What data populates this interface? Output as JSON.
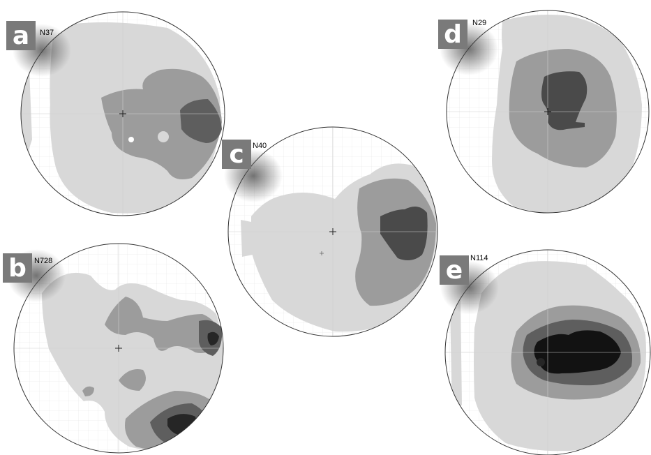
{
  "colors": {
    "background": "#ffffff",
    "level1": "#d6d6d6",
    "level2": "#9a9a9a",
    "level3": "#5c5c5c",
    "level4": "#262626",
    "level5": "#0f0f0f",
    "outline": "#333333"
  },
  "panels": [
    {
      "letter": "a",
      "n_label": "N37"
    },
    {
      "letter": "b",
      "n_label": "N728"
    },
    {
      "letter": "c",
      "n_label": "N40"
    },
    {
      "letter": "d",
      "n_label": "N29"
    },
    {
      "letter": "e",
      "n_label": "N114"
    }
  ]
}
